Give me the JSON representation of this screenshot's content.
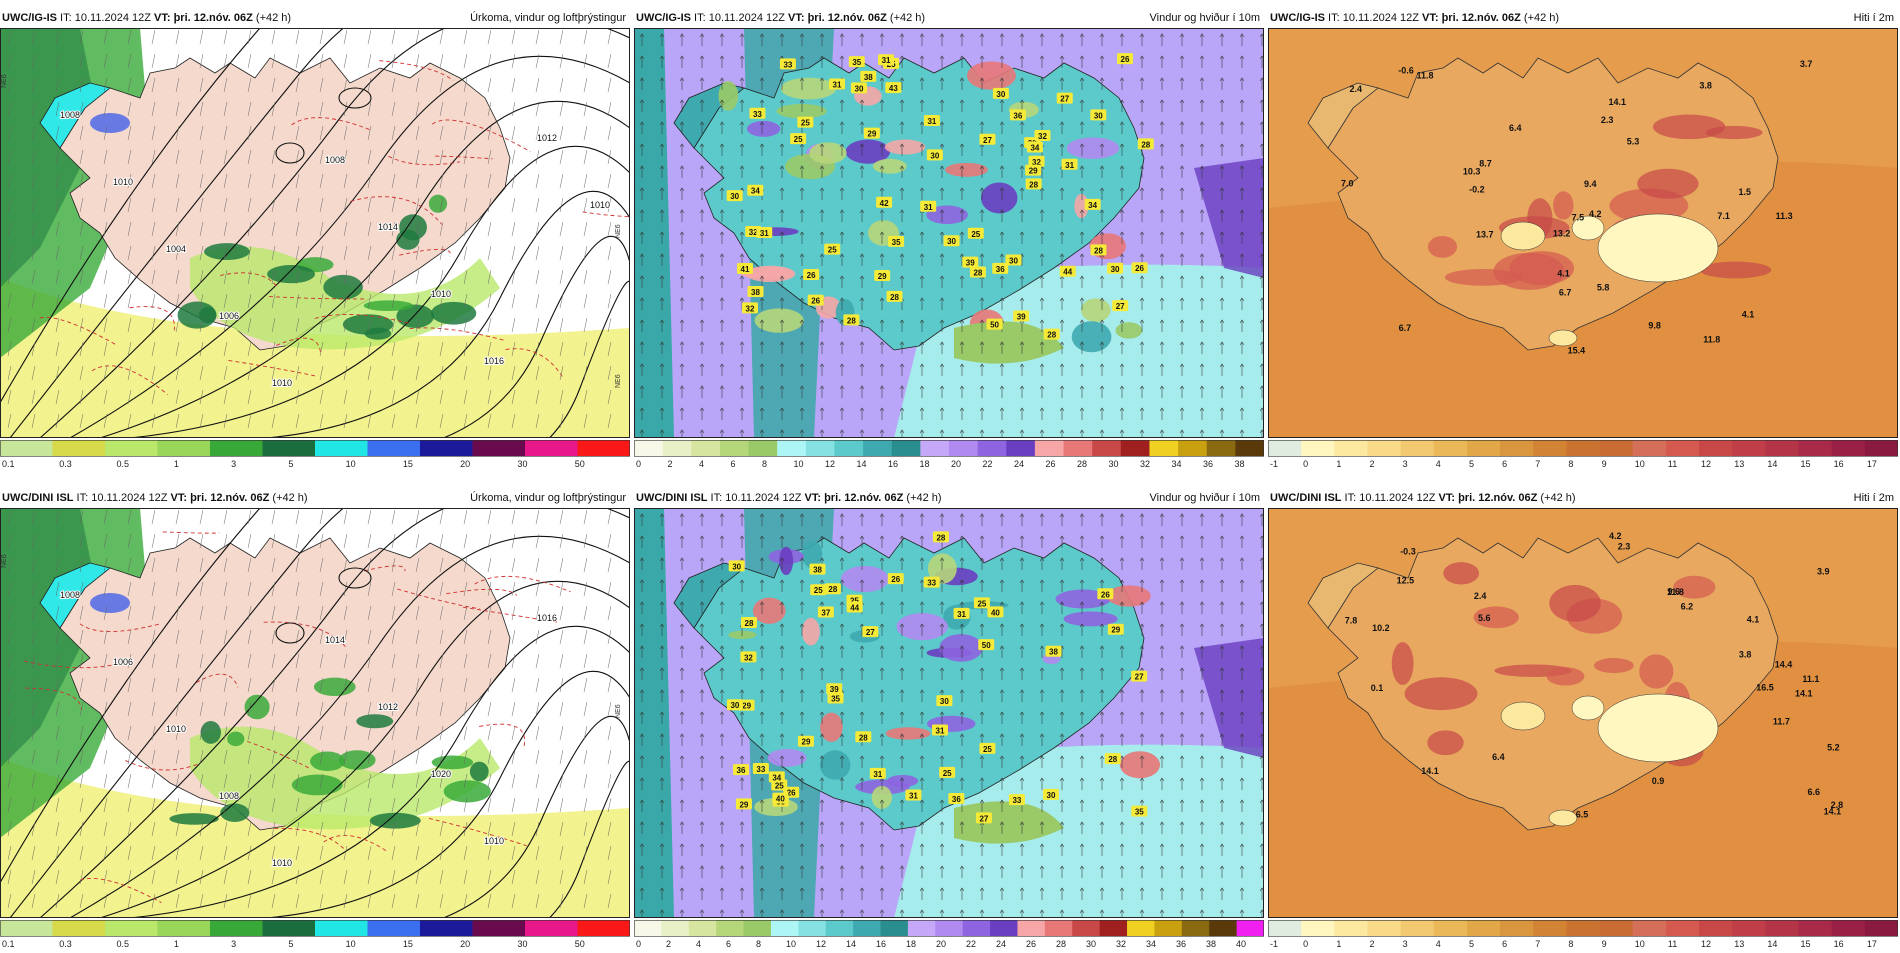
{
  "rows": [
    {
      "model": "UWC/IG-IS",
      "panels": [
        {
          "type": "precip",
          "it_label": "IT:",
          "it_value": "10.11.2024 12Z",
          "vt_label": "VT:",
          "vt_value": "þri. 12.nóv. 06Z",
          "lead": "(+42 h)",
          "title": "Úrkoma, vindur og loftþrýstingur",
          "legend_labels": [
            "0.1",
            "0.3",
            "0.5",
            "1",
            "3",
            "5",
            "10",
            "15",
            "20",
            "30",
            "50"
          ],
          "legend_colors": [
            "#c8e69a",
            "#d6d94a",
            "#b9e86a",
            "#9ad65a",
            "#38a838",
            "#1a6e3e",
            "#20e6e6",
            "#3a70f0",
            "#1a1a9a",
            "#6a0a4e",
            "#e8188a",
            "#f81818"
          ],
          "isobar_labels": [
            "1008",
            "1010",
            "1004",
            "1006",
            "1010",
            "1008",
            "1014",
            "1010",
            "1016",
            "1012",
            "1010"
          ],
          "map_label_sides": [
            "NE6",
            "NE6",
            "NE6"
          ],
          "colors": {
            "land": "#f4d9cc",
            "sea": "#ffffff",
            "green_dark": "#1e7a3e",
            "green": "#3aaa3a",
            "green_light": "#b9e86a",
            "yellow": "#f0f07a",
            "cyan": "#30e8e8",
            "blue": "#4460e8"
          }
        },
        {
          "type": "wind",
          "it_label": "IT:",
          "it_value": "10.11.2024 12Z",
          "vt_label": "VT:",
          "vt_value": "þri. 12.nóv. 06Z",
          "lead": "(+42 h)",
          "title": "Vindur og hviður í 10m",
          "legend_labels": [
            "0",
            "2",
            "4",
            "6",
            "8",
            "10",
            "12",
            "14",
            "16",
            "18",
            "20",
            "22",
            "24",
            "26",
            "28",
            "30",
            "32",
            "34",
            "36",
            "38"
          ],
          "legend_colors": [
            "#f8f8e8",
            "#e8f0c8",
            "#d6e6a0",
            "#b6d67a",
            "#9aca68",
            "#aef6f6",
            "#86e2e2",
            "#5ccacb",
            "#3eaab0",
            "#2a8e8e",
            "#c6a8f8",
            "#b08af0",
            "#8e64e0",
            "#6a3ec0",
            "#f6a6a6",
            "#e87878",
            "#c84848",
            "#a02020",
            "#f0d020",
            "#c8a010",
            "#8a6a10",
            "#5a3a0a"
          ],
          "gust_values": [
            "32",
            "36",
            "27",
            "31",
            "28",
            "29",
            "31",
            "32",
            "25",
            "31",
            "34",
            "25",
            "35",
            "33",
            "32",
            "39",
            "38",
            "43",
            "42",
            "35",
            "30",
            "41",
            "31",
            "39",
            "26",
            "29",
            "30",
            "28",
            "36",
            "34",
            "32",
            "28",
            "26",
            "25",
            "30",
            "33",
            "38",
            "44",
            "30",
            "28",
            "29",
            "30",
            "31",
            "50",
            "27",
            "25",
            "28",
            "26",
            "31",
            "28",
            "30",
            "27",
            "30",
            "25",
            "28",
            "34",
            "30",
            "26",
            "28"
          ],
          "colors": {
            "sea": "#b9a6f8",
            "sea_teal": "#3aa8a8",
            "land_base": "#5ccacb"
          }
        },
        {
          "type": "temp",
          "it_label": "IT:",
          "it_value": "10.11.2024 12Z",
          "vt_label": "VT:",
          "vt_value": "þri. 12.nóv. 06Z",
          "lead": "(+42 h)",
          "title": "Hiti í 2m",
          "legend_labels": [
            "-1",
            "0",
            "1",
            "2",
            "3",
            "4",
            "5",
            "6",
            "7",
            "8",
            "9",
            "10",
            "11",
            "12",
            "13",
            "14",
            "15",
            "16",
            "17"
          ],
          "legend_colors": [
            "#e0ece0",
            "#fff6c0",
            "#fde8a0",
            "#f8da88",
            "#f2c870",
            "#eab858",
            "#e2a848",
            "#da963e",
            "#d28434",
            "#ca7230",
            "#c86c34",
            "#d4705a",
            "#d45a50",
            "#c84848",
            "#c03e48",
            "#b43448",
            "#a82a48",
            "#9a2046",
            "#8a1a40"
          ],
          "temp_labels": [
            "6.7",
            "5.3",
            "4.2",
            "7.1",
            "11.8",
            "13.2",
            "13.7",
            "14.1",
            "15.4",
            "7.0",
            "6.4",
            "3.7",
            "8.7",
            "7.5",
            "11.8",
            "4.1",
            "10.3",
            "9.4",
            "4.1",
            "2.4",
            "-0.2",
            "3.8",
            "-0.6",
            "1.5",
            "5.8",
            "11.3",
            "6.7",
            "2.3",
            "9.8"
          ],
          "colors": {
            "sea": "#e09040",
            "land": "#e8a860"
          }
        }
      ]
    },
    {
      "model": "UWC/DINI ISL",
      "panels": [
        {
          "type": "precip",
          "it_label": "IT:",
          "it_value": "10.11.2024 12Z",
          "vt_label": "VT:",
          "vt_value": "þri. 12.nóv. 06Z",
          "lead": "(+42 h)",
          "title": "Úrkoma, vindur og loftþrýstingur",
          "legend_labels": [
            "0.1",
            "0.3",
            "0.5",
            "1",
            "3",
            "5",
            "10",
            "15",
            "20",
            "30",
            "50"
          ],
          "legend_colors": [
            "#c8e69a",
            "#d6d94a",
            "#b9e86a",
            "#9ad65a",
            "#38a838",
            "#1a6e3e",
            "#20e6e6",
            "#3a70f0",
            "#1a1a9a",
            "#6a0a4e",
            "#e8188a",
            "#f81818"
          ],
          "isobar_labels": [
            "1008",
            "1006",
            "1010",
            "1008",
            "1010",
            "1014",
            "1012",
            "1020",
            "1010",
            "1016"
          ],
          "map_label_sides": [
            "NE6",
            "NE6"
          ],
          "colors": {
            "land": "#f4d9cc",
            "sea": "#ffffff",
            "green_dark": "#1e7a3e",
            "green": "#3aaa3a",
            "green_light": "#b9e86a",
            "yellow": "#f0f07a",
            "cyan": "#30e8e8",
            "blue": "#4460e8"
          }
        },
        {
          "type": "wind",
          "it_label": "IT:",
          "it_value": "10.11.2024 12Z",
          "vt_label": "VT:",
          "vt_value": "þri. 12.nóv. 06Z",
          "lead": "(+42 h)",
          "title": "Vindur og hviður í 10m",
          "legend_labels": [
            "0",
            "2",
            "4",
            "6",
            "8",
            "10",
            "12",
            "14",
            "16",
            "18",
            "20",
            "22",
            "24",
            "26",
            "28",
            "30",
            "32",
            "34",
            "36",
            "38",
            "40"
          ],
          "legend_colors": [
            "#f8f8e8",
            "#e8f0c8",
            "#d6e6a0",
            "#b6d67a",
            "#9aca68",
            "#aef6f6",
            "#86e2e2",
            "#5ccacb",
            "#3eaab0",
            "#2a8e8e",
            "#c6a8f8",
            "#b08af0",
            "#8e64e0",
            "#6a3ec0",
            "#f6a6a6",
            "#e87878",
            "#c84848",
            "#a02020",
            "#f0d020",
            "#c8a010",
            "#8a6a10",
            "#5a3a0a",
            "#f020f0"
          ],
          "gust_values": [
            "38",
            "27",
            "25",
            "29",
            "25",
            "28",
            "27",
            "30",
            "26",
            "35",
            "33",
            "40",
            "38",
            "40",
            "28",
            "33",
            "31",
            "29",
            "32",
            "37",
            "33",
            "25",
            "30",
            "28",
            "36",
            "35",
            "26",
            "33",
            "39",
            "34",
            "44",
            "31",
            "25",
            "30",
            "28",
            "25",
            "30",
            "29",
            "31",
            "25",
            "27",
            "50",
            "26",
            "31",
            "28",
            "29",
            "36"
          ],
          "colors": {
            "sea": "#b9a6f8",
            "sea_teal": "#3aa8a8",
            "land_base": "#5ccacb"
          }
        },
        {
          "type": "temp",
          "it_label": "IT:",
          "it_value": "10.11.2024 12Z",
          "vt_label": "VT:",
          "vt_value": "þri. 12.nóv. 06Z",
          "lead": "(+42 h)",
          "title": "Hiti í 2m",
          "legend_labels": [
            "-1",
            "0",
            "1",
            "2",
            "3",
            "4",
            "5",
            "6",
            "7",
            "8",
            "9",
            "10",
            "11",
            "12",
            "13",
            "14",
            "15",
            "16",
            "17"
          ],
          "legend_colors": [
            "#e0ece0",
            "#fff6c0",
            "#fde8a0",
            "#f8da88",
            "#f2c870",
            "#eab858",
            "#e2a848",
            "#da963e",
            "#d28434",
            "#ca7230",
            "#c86c34",
            "#d4705a",
            "#d45a50",
            "#c84848",
            "#c03e48",
            "#b43448",
            "#a82a48",
            "#9a2046",
            "#8a1a40"
          ],
          "temp_labels": [
            "9.6",
            "6.4",
            "14.1",
            "4.2",
            "11.1",
            "12.5",
            "14.1",
            "14.4",
            "16.5",
            "5.6",
            "6.5",
            "11.8",
            "3.8",
            "10.2",
            "14.1",
            "11.7",
            "2.8",
            "6.6",
            "4.1",
            "2.3",
            "0.1",
            "5.2",
            "-0.3",
            "0.9",
            "6.2",
            "7.8",
            "3.9",
            "2.4"
          ],
          "colors": {
            "sea": "#e09040",
            "land": "#e8a860"
          }
        }
      ]
    }
  ]
}
